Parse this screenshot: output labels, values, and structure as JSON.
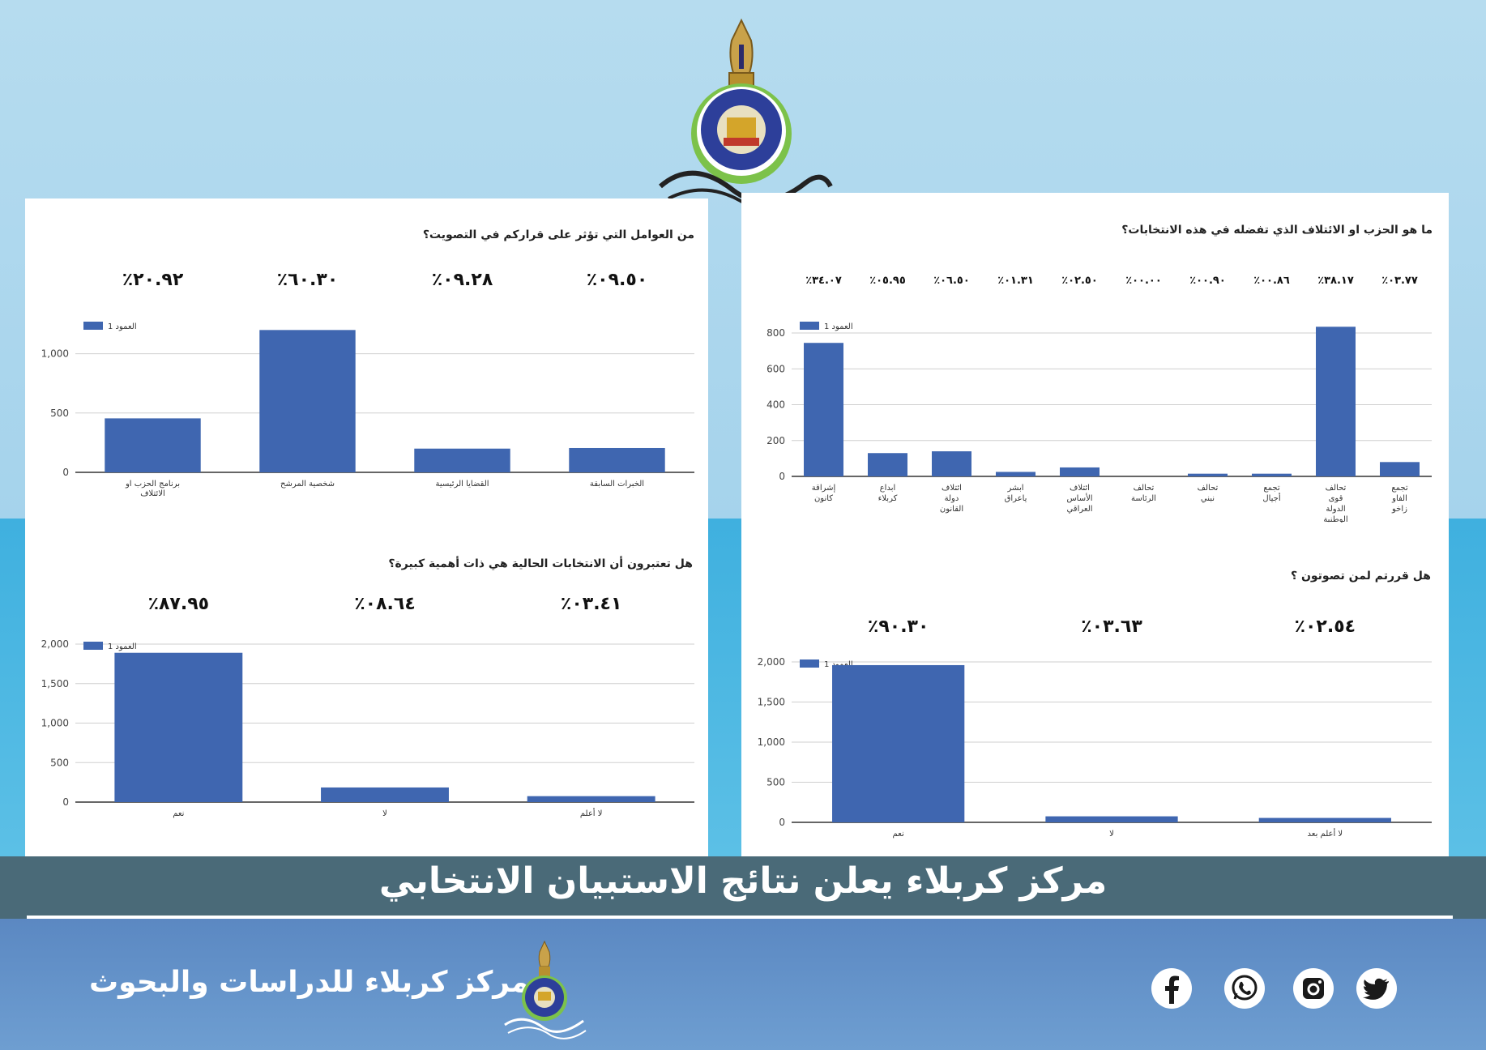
{
  "banner": {
    "title": "مركز كربلاء يعلن نتائج الاستبيان الانتخابي"
  },
  "footer": {
    "org_name": "مركز كربلاء للدراسات والبحوث"
  },
  "social": [
    {
      "name": "facebook-icon"
    },
    {
      "name": "whatsapp-icon"
    },
    {
      "name": "instagram-icon"
    },
    {
      "name": "twitter-icon"
    }
  ],
  "colors": {
    "bar": "#3f66b0",
    "banner": "#4a6a78",
    "footer": "#6e9ed1"
  },
  "chart_data": [
    {
      "id": "factors",
      "type": "bar",
      "title": "من العوامل التي تؤثر على قراركم في التصويت؟",
      "legend": "العمود 1",
      "categories": [
        "برنامج الحزب او الائتلاف",
        "شخصية المرشح",
        "القضايا الرئيسية",
        "الخبرات السابقة"
      ],
      "values": [
        455,
        1200,
        200,
        205
      ],
      "percent_labels": [
        "٪٢٠.٩٢",
        "٪٦٠.٣٠",
        "٪٠٩.٢٨",
        "٪٠٩.٥٠"
      ],
      "ylim": [
        0,
        1250
      ],
      "yticks": [
        0,
        500,
        1000
      ],
      "ytick_labels": [
        "0",
        "500",
        "1,000"
      ]
    },
    {
      "id": "party",
      "type": "bar",
      "title": "ما هو الحزب او الائتلاف الذي تفضله في هذه الانتخابات؟",
      "legend": "العمود 1",
      "categories": [
        "إشراقة كانون",
        "ابداع كربلاء",
        "ائتلاف دولة القانون",
        "ابشر ياعراق",
        "ائتلاف الأساس العراقي",
        "تحالف الرئاسة",
        "تحالف نبني",
        "تجمع أجيال",
        "تحالف قوى الدولة الوطنية",
        "تجمع الفاو زاخو"
      ],
      "values": [
        745,
        130,
        140,
        25,
        50,
        0,
        15,
        15,
        835,
        80
      ],
      "percent_labels": [
        "٪٣٤.٠٧",
        "٪٠٥.٩٥",
        "٪٠٦.٥٠",
        "٪٠١.٣١",
        "٪٠٢.٥٠",
        "٪٠٠.٠٠",
        "٪٠٠.٩٠",
        "٪٠٠.٨٦",
        "٪٣٨.١٧",
        "٪٠٣.٧٧"
      ],
      "ylim": [
        0,
        850
      ],
      "yticks": [
        0,
        200,
        400,
        600,
        800
      ],
      "ytick_labels": [
        "0",
        "200",
        "400",
        "600",
        "800"
      ]
    },
    {
      "id": "importance",
      "type": "bar",
      "title": "هل تعتبرون أن الانتخابات الحالية هي ذات أهمية كبيرة؟",
      "legend": "العمود 1",
      "categories": [
        "نعم",
        "لا",
        "لا أعلم"
      ],
      "values": [
        1890,
        185,
        75
      ],
      "percent_labels": [
        "٪٨٧.٩٥",
        "٪٠٨.٦٤",
        "٪٠٣.٤١"
      ],
      "ylim": [
        0,
        2000
      ],
      "yticks": [
        0,
        500,
        1000,
        1500,
        2000
      ],
      "ytick_labels": [
        "0",
        "500",
        "1,000",
        "1,500",
        "2,000"
      ]
    },
    {
      "id": "decided",
      "type": "bar",
      "title": "هل قررتم لمن تصوتون ؟",
      "legend": "العمود 1",
      "categories": [
        "نعم",
        "لا",
        "لا أعلم بعد"
      ],
      "values": [
        1960,
        75,
        55
      ],
      "percent_labels": [
        "٪٩٠.٣٠",
        "٪٠٣.٦٣",
        "٪٠٢.٥٤"
      ],
      "ylim": [
        0,
        2000
      ],
      "yticks": [
        0,
        500,
        1000,
        1500,
        2000
      ],
      "ytick_labels": [
        "0",
        "500",
        "1,000",
        "1,500",
        "2,000"
      ]
    }
  ]
}
